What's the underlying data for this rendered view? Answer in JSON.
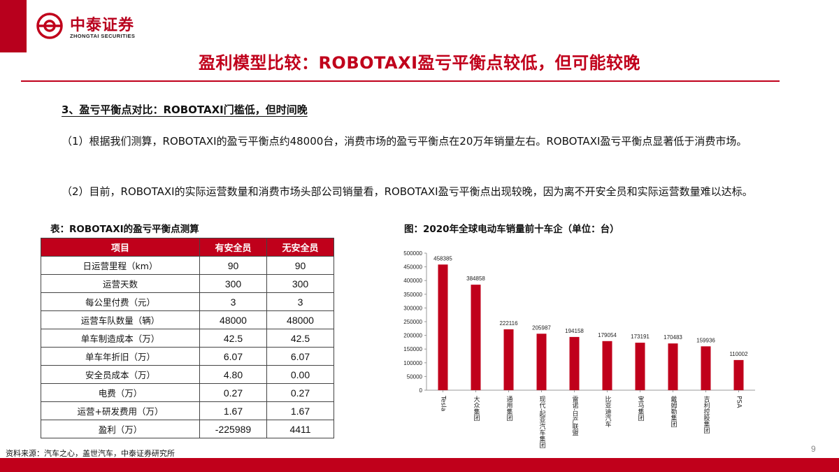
{
  "brand": {
    "name_cn": "中泰证券",
    "name_en": "ZHONGTAI SECURITIES",
    "color": "#c0001b"
  },
  "page_title": "盈利模型比较：ROBOTAXI盈亏平衡点较低，但可能较晚",
  "section_heading": "3、盈亏平衡点对比：ROBOTAXI门槛低，但时间晚",
  "paragraphs": [
    "（1）根据我们测算，ROBOTAXI的盈亏平衡点约48000台，消费市场的盈亏平衡点在20万年销量左右。ROBOTAXI盈亏平衡点显著低于消费市场。",
    "（2）目前，ROBOTAXI的实际运营数量和消费市场头部公司销量看，ROBOTAXI盈亏平衡点出现较晚，因为离不开安全员和实际运营数量难以达标。"
  ],
  "table": {
    "caption": "表：ROBOTAXI的盈亏平衡点测算",
    "headers": [
      "项目",
      "有安全员",
      "无安全员"
    ],
    "rows": [
      [
        "日运营里程（km）",
        "90",
        "90"
      ],
      [
        "运营天数",
        "300",
        "300"
      ],
      [
        "每公里付费（元）",
        "3",
        "3"
      ],
      [
        "运营车队数量（辆）",
        "48000",
        "48000"
      ],
      [
        "单车制造成本（万）",
        "42.5",
        "42.5"
      ],
      [
        "单车年折旧（万）",
        "6.07",
        "6.07"
      ],
      [
        "安全员成本（万）",
        "4.80",
        "0.00"
      ],
      [
        "电费（万）",
        "0.27",
        "0.27"
      ],
      [
        "运营+研发费用（万）",
        "1.67",
        "1.67"
      ],
      [
        "盈利（万）",
        "-225989",
        "4411"
      ]
    ]
  },
  "chart_caption": "图：2020年全球电动车销量前十车企（单位：台）",
  "chart_data": {
    "type": "bar",
    "categories": [
      "Tesla",
      "大众集团",
      "通用集团",
      "现代-起亚汽车集团",
      "雷诺-日产联盟",
      "比亚迪汽车",
      "宝马集团",
      "戴姆勒集团",
      "吉利控股集团",
      "PSA"
    ],
    "values": [
      458385,
      384858,
      222116,
      205987,
      194158,
      179054,
      173191,
      170483,
      159936,
      110002
    ],
    "yticks": [
      "0",
      "50000",
      "100000",
      "150000",
      "200000",
      "250000",
      "300000",
      "350000",
      "400000",
      "450000",
      "500000"
    ],
    "ylim": [
      0,
      500000
    ],
    "bar_color": "#c0001b",
    "grid": false
  },
  "source_note": "资料来源：汽车之心，盖世汽车，中泰证券研究所",
  "page_number": "9"
}
